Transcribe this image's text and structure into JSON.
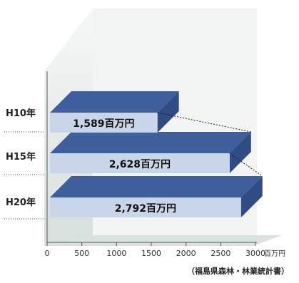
{
  "chart_data": {
    "type": "bar",
    "orientation": "horizontal",
    "style": "3d-stacked-slabs",
    "categories": [
      "H10年",
      "H15年",
      "H20年"
    ],
    "values": [
      1589,
      2628,
      2792
    ],
    "value_labels": [
      "1,589百万円",
      "2,628百万円",
      "2,792百万円"
    ],
    "x_ticks": [
      "0",
      "500",
      "1000",
      "1500",
      "2000",
      "2500",
      "3000"
    ],
    "xlim": [
      0,
      3000
    ],
    "x_unit": "百万円",
    "source": "（福島県森林・林業統計書）",
    "grid": false,
    "colors": {
      "bar_top": "#3e5f9b",
      "bar_front": "#c9d5e8",
      "bar_side": "#2f4c84",
      "wall": "#e8eceb",
      "floor": "#dfe6e3",
      "axis": "#555555"
    }
  }
}
